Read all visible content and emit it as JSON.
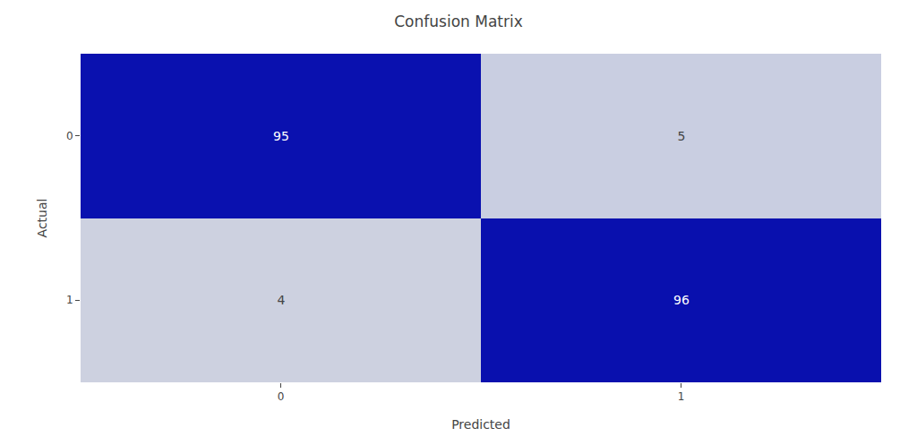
{
  "chart_data": {
    "type": "heatmap",
    "title": "Confusion Matrix",
    "xlabel": "Predicted",
    "ylabel": "Actual",
    "x_categories": [
      "0",
      "1"
    ],
    "y_categories": [
      "0",
      "1"
    ],
    "cells": [
      [
        95,
        5
      ],
      [
        4,
        96
      ]
    ],
    "zlim": [
      0,
      100
    ],
    "data_labels": true
  }
}
